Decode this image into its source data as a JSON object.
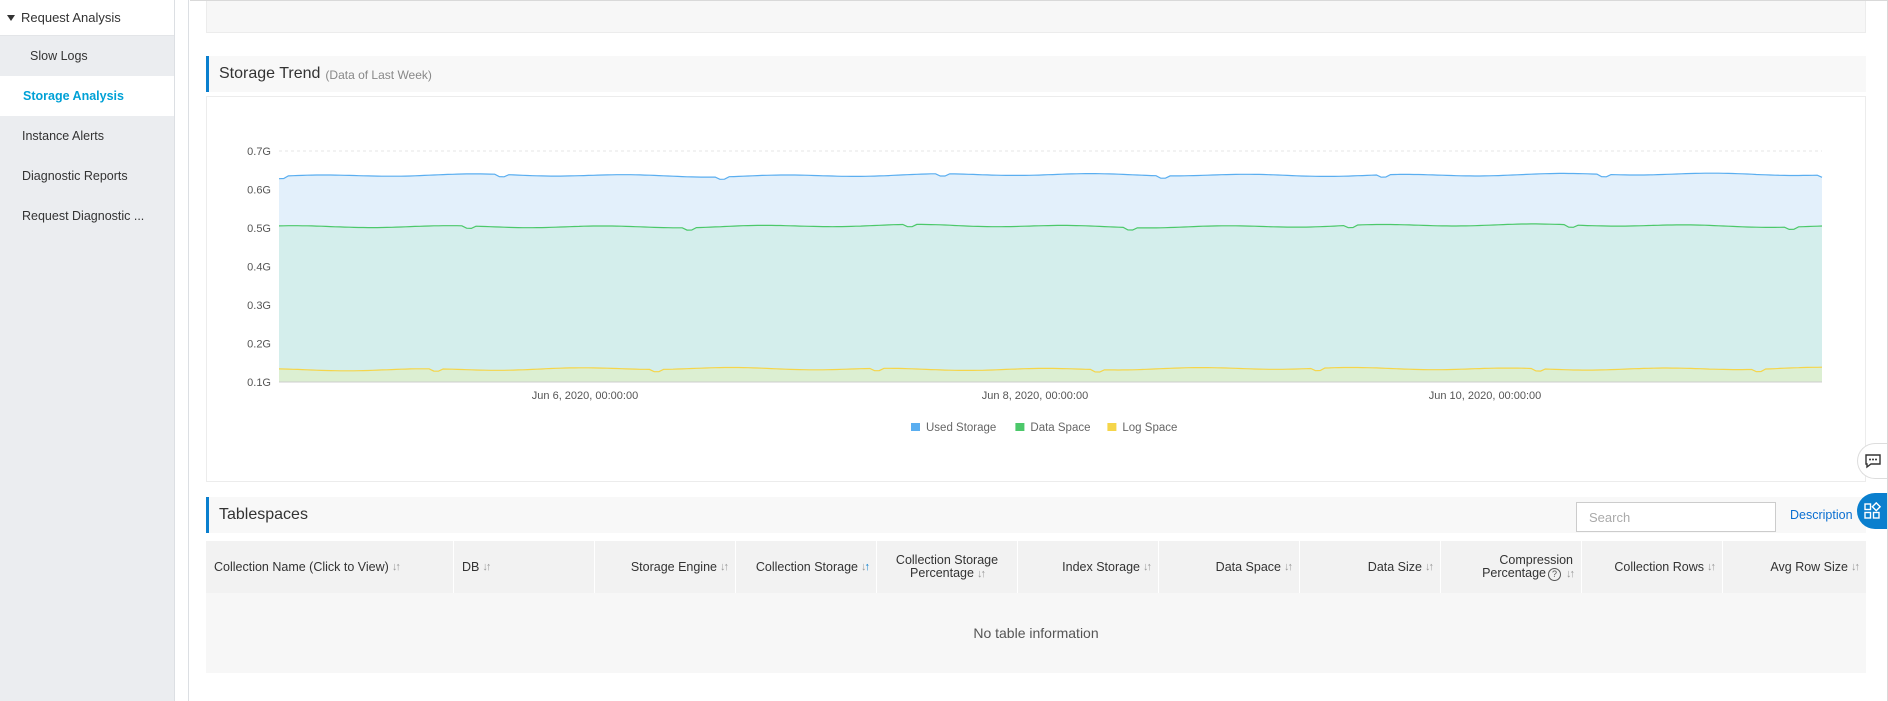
{
  "sidebar": {
    "group_label": "Request Analysis",
    "items": [
      {
        "label": "Slow Logs",
        "active": false,
        "sub": true
      },
      {
        "label": "Storage Analysis",
        "active": true,
        "sub": true
      },
      {
        "label": "Instance Alerts",
        "active": false,
        "sub": false
      },
      {
        "label": "Diagnostic Reports",
        "active": false,
        "sub": false
      },
      {
        "label": "Request Diagnostic ...",
        "active": false,
        "sub": false
      }
    ]
  },
  "storage_trend": {
    "title": "Storage Trend",
    "subtitle": "(Data of Last Week)"
  },
  "chart_data": {
    "type": "area",
    "x_tick_labels": [
      "Jun 6, 2020, 00:00:00",
      "Jun 8, 2020, 00:00:00",
      "Jun 10, 2020, 00:00:00"
    ],
    "y_tick_labels": [
      "0.7G",
      "0.6G",
      "0.5G",
      "0.4G",
      "0.3G",
      "0.2G",
      "0.1G"
    ],
    "ylim": [
      0.1,
      0.7
    ],
    "xlim": [
      "Jun 4, 2020, 22:00:00",
      "Jun 11, 2020, 22:00:00"
    ],
    "x": [
      "Jun 4, 2020",
      "Jun 5, 2020",
      "Jun 6, 2020",
      "Jun 7, 2020",
      "Jun 8, 2020",
      "Jun 9, 2020",
      "Jun 10, 2020",
      "Jun 11, 2020"
    ],
    "series": [
      {
        "name": "Used Storage",
        "color": "#5aaef0",
        "values": [
          0.634,
          0.637,
          0.636,
          0.638,
          0.637,
          0.638,
          0.639,
          0.638
        ]
      },
      {
        "name": "Data Space",
        "color": "#4cc86a",
        "values": [
          0.502,
          0.505,
          0.503,
          0.506,
          0.504,
          0.506,
          0.507,
          0.505
        ]
      },
      {
        "name": "Log Space",
        "color": "#f5d54a",
        "values": [
          0.133,
          0.133,
          0.134,
          0.134,
          0.134,
          0.134,
          0.135,
          0.135
        ]
      }
    ],
    "grid": true,
    "legend_position": "bottom-center"
  },
  "tablespaces": {
    "title": "Tablespaces",
    "search_placeholder": "Search",
    "description_link": "Description",
    "columns": [
      {
        "label": "Collection Name (Click to View)",
        "align": "left"
      },
      {
        "label": "DB",
        "align": "left"
      },
      {
        "label": "Storage Engine",
        "align": "right"
      },
      {
        "label": "Collection Storage",
        "align": "right"
      },
      {
        "label_line1": "Collection Storage",
        "label_line2": "Percentage",
        "align": "center"
      },
      {
        "label": "Index Storage",
        "align": "right"
      },
      {
        "label": "Data Space",
        "align": "right"
      },
      {
        "label": "Data Size",
        "align": "right"
      },
      {
        "label_line1": "Compression",
        "label_line2": "Percentage",
        "align": "center"
      },
      {
        "label": "Collection Rows",
        "align": "right"
      },
      {
        "label": "Avg Row Size",
        "align": "right"
      }
    ],
    "empty_text": "No table information"
  },
  "icons": {
    "chat": "chat-bubble-icon",
    "apps": "apps-grid-icon",
    "sort": "sort-arrows-icon",
    "help": "question-circle-icon"
  }
}
